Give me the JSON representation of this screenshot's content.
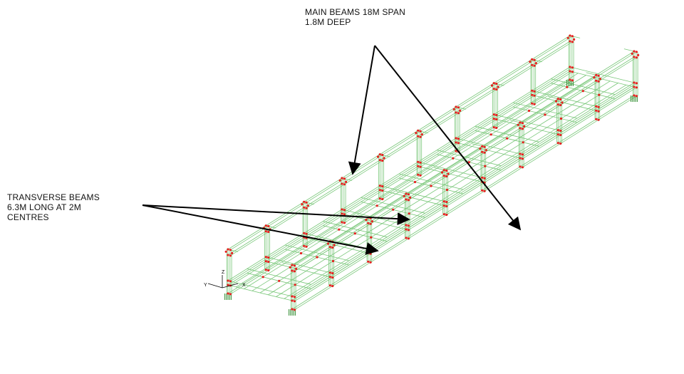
{
  "annotations": {
    "main_beams": {
      "lines": [
        "MAIN BEAMS 18M SPAN",
        "1.8M DEEP"
      ]
    },
    "transverse_beams": {
      "lines": [
        "TRANSVERSE BEAMS",
        "6.3M LONG AT 2M",
        "CENTRES"
      ]
    }
  },
  "axis_triad": {
    "labels": {
      "x": "X",
      "y": "Y",
      "z": "Z"
    }
  },
  "colors": {
    "frame": "#79c779",
    "node": "#e82020",
    "support": "#2e8b2e",
    "arrow": "#000000"
  }
}
